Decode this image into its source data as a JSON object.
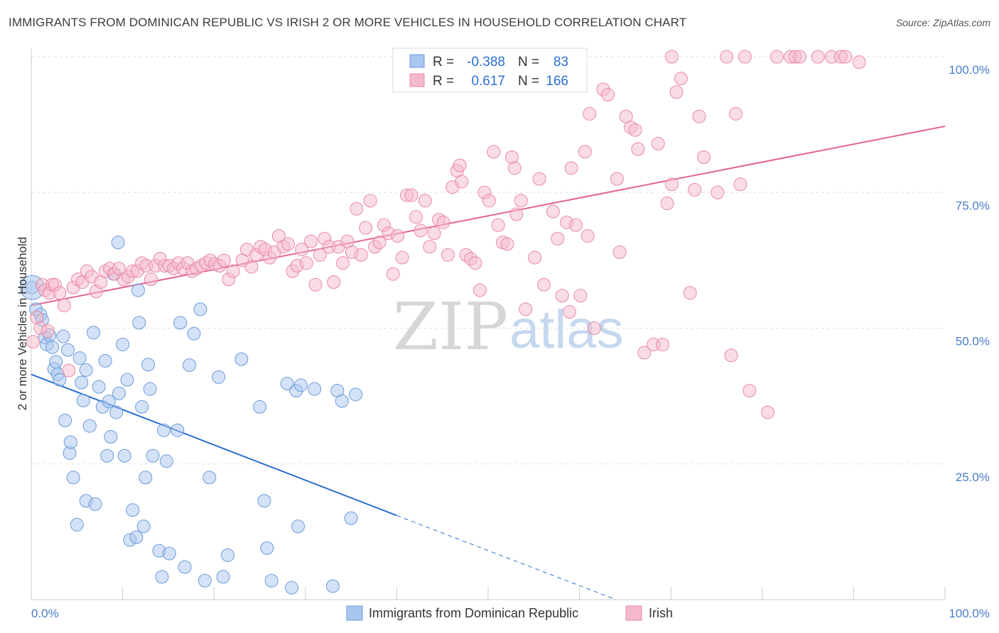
{
  "title": "IMMIGRANTS FROM DOMINICAN REPUBLIC VS IRISH 2 OR MORE VEHICLES IN HOUSEHOLD CORRELATION CHART",
  "source": "Source: ZipAtlas.com",
  "watermark": {
    "zip": "ZIP",
    "atlas": "atlas"
  },
  "legend_box": {
    "rows": [
      {
        "r_label": "R =",
        "r_value": "-0.388",
        "n_label": "N =",
        "n_value": "83",
        "color": "#a9c6ef",
        "stroke": "#6c9bd8"
      },
      {
        "r_label": "R =",
        "r_value": "0.617",
        "n_label": "N =",
        "n_value": "166",
        "color": "#f6b9cc",
        "stroke": "#e889a6"
      }
    ]
  },
  "chart_data": {
    "type": "scatter",
    "ylabel": "2 or more Vehicles in Household",
    "xlabel": "",
    "xlim": [
      0,
      100
    ],
    "ylim": [
      0,
      100
    ],
    "x_tick_labels": [
      "0.0%",
      "100.0%"
    ],
    "y_ticks": [
      25,
      50,
      75,
      100
    ],
    "y_tick_labels": [
      "25.0%",
      "50.0%",
      "75.0%",
      "100.0%"
    ],
    "grid": true,
    "legend_position": "bottom-center",
    "series": [
      {
        "name": "Immigrants from Dominican Republic",
        "color": "#a9c6ef",
        "stroke": "#6c9bd8",
        "line_color": "#2b6fd1",
        "trend": {
          "x0": 0,
          "y0": 41.5,
          "x1": 40,
          "y1": 15.5,
          "dash_x1": 64,
          "dash_y1": 0
        },
        "points": [
          [
            0.1,
            57.5
          ],
          [
            0.5,
            53.5
          ],
          [
            1,
            52.5
          ],
          [
            1.2,
            51.5
          ],
          [
            1.5,
            48.3
          ],
          [
            1.7,
            47
          ],
          [
            2,
            48.7
          ],
          [
            2.3,
            46.5
          ],
          [
            2.5,
            42.5
          ],
          [
            2.7,
            43.8
          ],
          [
            2.9,
            41.5
          ],
          [
            3.1,
            40.5
          ],
          [
            3.5,
            48.5
          ],
          [
            3.7,
            33
          ],
          [
            4,
            46
          ],
          [
            4.2,
            27
          ],
          [
            4.3,
            29
          ],
          [
            4.6,
            22.5
          ],
          [
            5,
            13.8
          ],
          [
            5.3,
            44.5
          ],
          [
            5.5,
            40
          ],
          [
            5.7,
            36.7
          ],
          [
            6,
            42.3
          ],
          [
            6,
            18.2
          ],
          [
            6.4,
            32
          ],
          [
            6.8,
            49.2
          ],
          [
            7,
            17.6
          ],
          [
            7.4,
            39.2
          ],
          [
            7.8,
            35.5
          ],
          [
            8.1,
            44
          ],
          [
            8.3,
            26.5
          ],
          [
            8.5,
            36.5
          ],
          [
            8.7,
            30
          ],
          [
            9,
            60
          ],
          [
            9.3,
            34.5
          ],
          [
            9.5,
            65.8
          ],
          [
            9.6,
            38
          ],
          [
            10,
            47
          ],
          [
            10.2,
            26.5
          ],
          [
            10.5,
            40.5
          ],
          [
            10.8,
            11
          ],
          [
            11.1,
            16.5
          ],
          [
            11.5,
            11.5
          ],
          [
            11.7,
            57
          ],
          [
            11.8,
            51
          ],
          [
            12.1,
            35.5
          ],
          [
            12.3,
            13.5
          ],
          [
            12.5,
            22.5
          ],
          [
            12.8,
            43.3
          ],
          [
            13,
            38.8
          ],
          [
            13.3,
            26.5
          ],
          [
            14,
            9
          ],
          [
            14.3,
            4.2
          ],
          [
            14.5,
            31.2
          ],
          [
            14.8,
            25.5
          ],
          [
            15.1,
            8.5
          ],
          [
            16,
            31.2
          ],
          [
            16.3,
            51
          ],
          [
            16.8,
            6
          ],
          [
            17.3,
            43.2
          ],
          [
            17.8,
            49
          ],
          [
            18.5,
            53.5
          ],
          [
            19,
            3.5
          ],
          [
            19.5,
            22.5
          ],
          [
            20.5,
            41
          ],
          [
            21,
            4.2
          ],
          [
            21.5,
            8.2
          ],
          [
            23,
            44.3
          ],
          [
            25,
            35.5
          ],
          [
            25.5,
            18.2
          ],
          [
            25.8,
            9.5
          ],
          [
            26.3,
            3.5
          ],
          [
            28,
            39.8
          ],
          [
            28.5,
            2.2
          ],
          [
            29,
            38.5
          ],
          [
            29.2,
            13.5
          ],
          [
            29.5,
            39.5
          ],
          [
            31,
            38.8
          ],
          [
            33,
            2.5
          ],
          [
            33.5,
            38.5
          ],
          [
            34,
            36.6
          ],
          [
            35,
            15
          ],
          [
            35.5,
            37.8
          ]
        ]
      },
      {
        "name": "Irish",
        "color": "#f6b9cc",
        "stroke": "#e889a6",
        "line_color": "#e36591",
        "trend": {
          "x0": 0,
          "y0": 54.2,
          "x1": 100,
          "y1": 87.2
        },
        "points": [
          [
            0.2,
            47.5
          ],
          [
            0.6,
            52
          ],
          [
            1,
            50
          ],
          [
            1.2,
            58
          ],
          [
            1.5,
            57
          ],
          [
            1.8,
            49.5
          ],
          [
            2,
            56.5
          ],
          [
            2.3,
            58
          ],
          [
            2.6,
            58
          ],
          [
            3.1,
            56.5
          ],
          [
            3.6,
            54.2
          ],
          [
            4.1,
            42.2
          ],
          [
            4.6,
            57.5
          ],
          [
            5.1,
            59
          ],
          [
            5.6,
            58.5
          ],
          [
            6.1,
            60.5
          ],
          [
            6.6,
            59.5
          ],
          [
            7.1,
            56.8
          ],
          [
            7.6,
            58.5
          ],
          [
            8.1,
            60.5
          ],
          [
            8.6,
            61
          ],
          [
            9.1,
            60
          ],
          [
            9.6,
            61
          ],
          [
            10.1,
            59
          ],
          [
            10.6,
            59.5
          ],
          [
            11.1,
            60.5
          ],
          [
            11.6,
            60.5
          ],
          [
            12.1,
            62
          ],
          [
            12.6,
            61.5
          ],
          [
            13.1,
            59
          ],
          [
            13.6,
            61.5
          ],
          [
            14.1,
            62.8
          ],
          [
            14.6,
            61.5
          ],
          [
            15.1,
            61.5
          ],
          [
            15.6,
            61
          ],
          [
            16.1,
            62
          ],
          [
            16.6,
            61
          ],
          [
            17.1,
            62
          ],
          [
            17.6,
            60.5
          ],
          [
            18.1,
            61
          ],
          [
            18.6,
            61.5
          ],
          [
            19.1,
            62
          ],
          [
            19.6,
            62.5
          ],
          [
            20.1,
            61.8
          ],
          [
            20.6,
            61.5
          ],
          [
            21.1,
            62.5
          ],
          [
            21.6,
            59
          ],
          [
            22.1,
            60.5
          ],
          [
            23.1,
            62.5
          ],
          [
            23.6,
            64.5
          ],
          [
            24.1,
            61.3
          ],
          [
            24.6,
            63.5
          ],
          [
            25.1,
            65
          ],
          [
            25.6,
            64.5
          ],
          [
            26.1,
            63
          ],
          [
            26.6,
            64
          ],
          [
            27.1,
            67
          ],
          [
            27.6,
            65
          ],
          [
            28.1,
            65.5
          ],
          [
            28.6,
            60.5
          ],
          [
            29.1,
            61.5
          ],
          [
            29.6,
            64.5
          ],
          [
            30.1,
            62
          ],
          [
            30.6,
            66
          ],
          [
            31.1,
            58
          ],
          [
            31.6,
            63.5
          ],
          [
            32.1,
            66.5
          ],
          [
            32.6,
            65
          ],
          [
            33.1,
            58.5
          ],
          [
            33.6,
            65
          ],
          [
            34.1,
            62
          ],
          [
            34.6,
            66
          ],
          [
            35.1,
            64
          ],
          [
            35.6,
            72
          ],
          [
            36.1,
            63.5
          ],
          [
            36.6,
            68.5
          ],
          [
            37.1,
            73.5
          ],
          [
            37.6,
            65
          ],
          [
            38.1,
            65.8
          ],
          [
            38.6,
            69
          ],
          [
            39.1,
            67.5
          ],
          [
            39.6,
            60
          ],
          [
            40.1,
            67
          ],
          [
            40.6,
            63
          ],
          [
            41.1,
            74.5
          ],
          [
            41.6,
            74.5
          ],
          [
            42.1,
            70.5
          ],
          [
            42.6,
            68
          ],
          [
            43.1,
            73.5
          ],
          [
            43.6,
            65
          ],
          [
            44.1,
            67.5
          ],
          [
            44.6,
            70
          ],
          [
            45.1,
            69.5
          ],
          [
            45.6,
            63.5
          ],
          [
            46.1,
            76
          ],
          [
            46.6,
            79
          ],
          [
            46.9,
            80
          ],
          [
            47.1,
            77
          ],
          [
            47.6,
            63.5
          ],
          [
            48.1,
            62.8
          ],
          [
            48.6,
            62
          ],
          [
            49.1,
            57
          ],
          [
            49.6,
            75
          ],
          [
            50.1,
            73.5
          ],
          [
            50.6,
            82.5
          ],
          [
            51.1,
            69
          ],
          [
            51.6,
            65.8
          ],
          [
            52.1,
            65.5
          ],
          [
            52.6,
            81.5
          ],
          [
            52.9,
            79.5
          ],
          [
            53.1,
            71
          ],
          [
            53.6,
            73.5
          ],
          [
            54.1,
            53.5
          ],
          [
            55.1,
            63
          ],
          [
            55.6,
            77.5
          ],
          [
            56.1,
            58
          ],
          [
            57.1,
            71.5
          ],
          [
            57.6,
            66.5
          ],
          [
            58.1,
            56
          ],
          [
            58.6,
            69.5
          ],
          [
            58.9,
            53
          ],
          [
            59.1,
            79.5
          ],
          [
            59.6,
            69
          ],
          [
            60.1,
            56
          ],
          [
            60.6,
            82.5
          ],
          [
            60.9,
            67
          ],
          [
            61.1,
            89.5
          ],
          [
            61.6,
            50
          ],
          [
            62.6,
            94
          ],
          [
            63.1,
            93
          ],
          [
            64.1,
            77.5
          ],
          [
            64.4,
            64
          ],
          [
            65.1,
            89
          ],
          [
            65.6,
            87
          ],
          [
            66.1,
            86.5
          ],
          [
            66.4,
            83
          ],
          [
            67.1,
            45.5
          ],
          [
            68.1,
            47
          ],
          [
            68.6,
            84
          ],
          [
            69.1,
            47
          ],
          [
            69.6,
            73
          ],
          [
            70.1,
            76.5
          ],
          [
            70.6,
            93.5
          ],
          [
            71.1,
            96
          ],
          [
            72.1,
            56.5
          ],
          [
            72.6,
            75.5
          ],
          [
            73.1,
            89
          ],
          [
            73.6,
            81.5
          ],
          [
            75.1,
            75
          ],
          [
            76.6,
            45
          ],
          [
            77.1,
            89.5
          ],
          [
            77.6,
            76.5
          ],
          [
            78.6,
            38.5
          ],
          [
            80.6,
            34.5
          ],
          [
            70.1,
            100
          ],
          [
            76.1,
            100
          ],
          [
            78.1,
            100
          ],
          [
            81.6,
            100
          ],
          [
            83.1,
            100
          ],
          [
            83.6,
            100
          ],
          [
            84.1,
            100
          ],
          [
            86.1,
            100
          ],
          [
            87.6,
            100
          ],
          [
            88.6,
            100
          ],
          [
            89.1,
            100
          ],
          [
            90.6,
            99
          ]
        ]
      }
    ]
  },
  "bottom_legend": [
    {
      "label": "Immigrants from Dominican Republic",
      "color": "#a9c6ef",
      "stroke": "#6c9bd8"
    },
    {
      "label": "Irish",
      "color": "#f6b9cc",
      "stroke": "#e889a6"
    }
  ]
}
